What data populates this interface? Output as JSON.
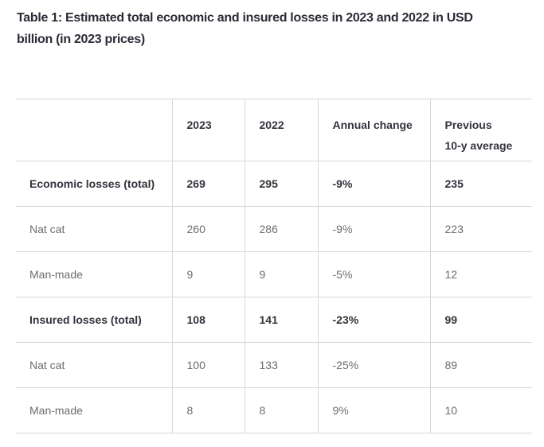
{
  "title": "Table 1: Estimated total economic and insured losses in 2023 and 2022 in USD\nbillion (in 2023 prices)",
  "table": {
    "column_headers": [
      "",
      "2023",
      "2022",
      "Annual change",
      "Previous\n10-y average"
    ],
    "rows": [
      {
        "label": "Economic losses (total)",
        "v2023": "269",
        "v2022": "295",
        "annual_change": "-9%",
        "previous_10y_average": "235",
        "emphasis": "bold"
      },
      {
        "label": "Nat cat",
        "v2023": "260",
        "v2022": "286",
        "annual_change": "-9%",
        "previous_10y_average": "223",
        "emphasis": "regular"
      },
      {
        "label": "Man-made",
        "v2023": "9",
        "v2022": "9",
        "annual_change": "-5%",
        "previous_10y_average": "12",
        "emphasis": "regular"
      },
      {
        "label": "Insured losses (total)",
        "v2023": "108",
        "v2022": "141",
        "annual_change": "-23%",
        "previous_10y_average": "99",
        "emphasis": "bold"
      },
      {
        "label": "Nat cat",
        "v2023": "100",
        "v2022": "133",
        "annual_change": "-25%",
        "previous_10y_average": "89",
        "emphasis": "regular"
      },
      {
        "label": "Man-made",
        "v2023": "8",
        "v2022": "8",
        "annual_change": "9%",
        "previous_10y_average": "10",
        "emphasis": "regular"
      }
    ]
  },
  "colors": {
    "title_text": "#2b2b36",
    "header_text": "#33333d",
    "bold_row_text": "#33333d",
    "regular_row_text": "#6c6c72",
    "border": "#d7d7d7",
    "background": "#ffffff"
  }
}
